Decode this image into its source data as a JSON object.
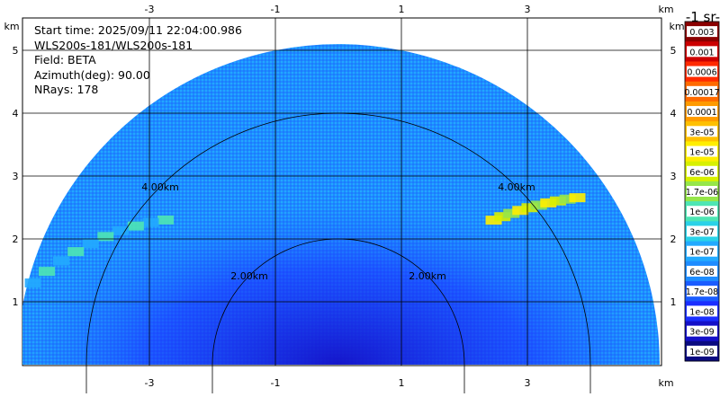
{
  "info": {
    "start_time": "Start time: 2025/09/11 22:04:00.986",
    "instrument": "WLS200s-181/WLS200s-181",
    "field": "Field: BETA",
    "azimuth": "Azimuth(deg): 90.00",
    "nrays": "NRays: 178"
  },
  "units_label": "-1 sr-",
  "chart_data": {
    "type": "heatmap",
    "subtype": "rhi-sector",
    "x_unit": "km",
    "y_unit": "km",
    "xlim": [
      -5,
      5
    ],
    "ylim": [
      0,
      5.9
    ],
    "x_ticks": [
      -3,
      -1,
      1,
      3
    ],
    "y_ticks": [
      1,
      2,
      3,
      4,
      5
    ],
    "grid": true,
    "max_range_km": 5.1,
    "range_rings_km": [
      2.0,
      4.0
    ],
    "range_ring_labels": [
      "2.00km",
      "4.00km"
    ],
    "colorbar": {
      "position": "right",
      "levels": [
        "0.003",
        "0.001",
        "0.0006",
        "0.00017",
        "0.0001",
        "3e-05",
        "1e-05",
        "6e-06",
        "1.7e-06",
        "1e-06",
        "3e-07",
        "1e-07",
        "6e-08",
        "1.7e-08",
        "1e-08",
        "3e-09",
        "1e-09"
      ],
      "colors": [
        "#8b0000",
        "#cc0000",
        "#ff2a00",
        "#ff6a00",
        "#ff9a00",
        "#ffc000",
        "#ffee00",
        "#d8f000",
        "#96e64a",
        "#4ee6b4",
        "#2ad2e8",
        "#22aaff",
        "#1e8cff",
        "#1a5cff",
        "#1a2eff",
        "#1410c8",
        "#0a0a80"
      ]
    },
    "features": [
      {
        "name": "aerosol-layer-east",
        "range_km": [
          3.3,
          4.7
        ],
        "elevation_deg": [
          35,
          43
        ],
        "level": "1.7e-06 to 1e-05"
      },
      {
        "name": "aerosol-layer-west",
        "range_km": [
          3.5,
          5.1
        ],
        "elevation_deg": [
          140,
          165
        ],
        "level": "1e-07 to 1e-06"
      }
    ]
  }
}
